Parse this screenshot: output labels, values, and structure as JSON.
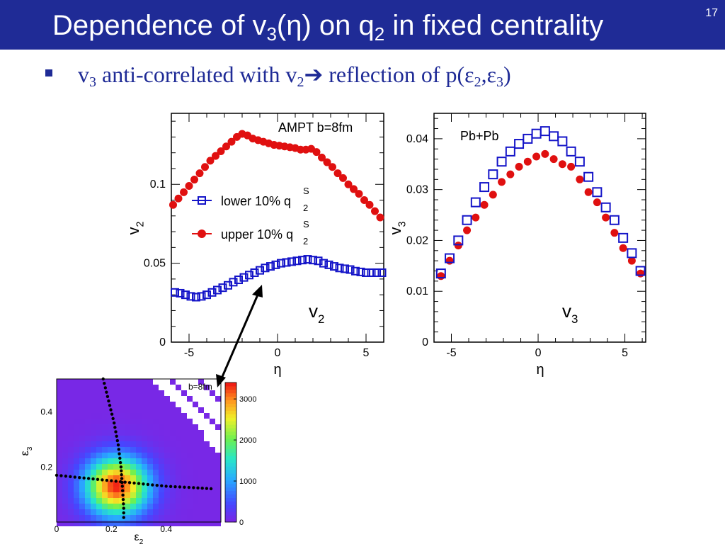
{
  "slide": {
    "title": {
      "pre": "Dependence of v",
      "sub1": "3",
      "mid": "(η) on q",
      "sub2": "2",
      "post": " in fixed centrality"
    },
    "slide_number": "17",
    "bullet": {
      "pre": "v",
      "sub1": "3",
      "mid": " anti-correlated with v",
      "sub2": "2",
      "arrow": "➔",
      "post1": " reflection of p(ε",
      "sub3": "2",
      "comma": ",ε",
      "sub4": "3",
      "post2": ")"
    }
  },
  "colors": {
    "title_bg": "#1f2b96",
    "blue": "#1414c8",
    "red": "#e01010",
    "arrow": "#000000"
  },
  "chart_data": [
    {
      "type": "scatter",
      "annotation": "AMPT b=8fm",
      "xlabel": "η",
      "ylabel": "v2",
      "panel_label": {
        "pre": "v",
        "sub": "2"
      },
      "xlim": [
        -6,
        6
      ],
      "ylim": [
        0,
        0.145
      ],
      "xticks": [
        "-5",
        "0",
        "5"
      ],
      "yticks": [
        "0",
        "0.05",
        "0.1"
      ],
      "legend": {
        "position": "center-left",
        "entries": [
          "lower 10% q",
          "upper 10% q"
        ],
        "sup": "S",
        "sub": "2"
      },
      "series": [
        {
          "name": "lower 10% q2S",
          "marker": "open-square",
          "color": "#1414c8",
          "x": [
            -5.8,
            -5.5,
            -5.2,
            -4.9,
            -4.6,
            -4.3,
            -4.0,
            -3.7,
            -3.4,
            -3.1,
            -2.8,
            -2.5,
            -2.2,
            -1.9,
            -1.6,
            -1.3,
            -1.0,
            -0.7,
            -0.4,
            -0.1,
            0.2,
            0.5,
            0.8,
            1.1,
            1.4,
            1.7,
            2.0,
            2.3,
            2.6,
            2.9,
            3.2,
            3.5,
            3.8,
            4.1,
            4.4,
            4.7,
            5.0,
            5.3,
            5.6,
            5.9
          ],
          "y": [
            0.0315,
            0.031,
            0.03,
            0.029,
            0.0285,
            0.029,
            0.03,
            0.0315,
            0.033,
            0.0345,
            0.036,
            0.038,
            0.0395,
            0.041,
            0.0425,
            0.044,
            0.0455,
            0.047,
            0.048,
            0.049,
            0.05,
            0.0505,
            0.051,
            0.0515,
            0.052,
            0.0525,
            0.052,
            0.0515,
            0.05,
            0.049,
            0.048,
            0.047,
            0.0465,
            0.046,
            0.045,
            0.0445,
            0.044,
            0.044,
            0.044,
            0.044
          ]
        },
        {
          "name": "upper 10% q2S",
          "marker": "filled-circle",
          "color": "#e01010",
          "x": [
            -5.9,
            -5.6,
            -5.3,
            -5.0,
            -4.7,
            -4.4,
            -4.1,
            -3.8,
            -3.5,
            -3.2,
            -2.9,
            -2.6,
            -2.3,
            -2.0,
            -1.7,
            -1.4,
            -1.1,
            -0.8,
            -0.5,
            -0.2,
            0.1,
            0.4,
            0.7,
            1.0,
            1.3,
            1.6,
            1.9,
            2.2,
            2.5,
            2.8,
            3.1,
            3.4,
            3.7,
            4.0,
            4.3,
            4.6,
            4.9,
            5.2,
            5.5,
            5.8
          ],
          "y": [
            0.087,
            0.091,
            0.095,
            0.099,
            0.103,
            0.107,
            0.111,
            0.115,
            0.118,
            0.121,
            0.124,
            0.127,
            0.13,
            0.132,
            0.131,
            0.129,
            0.128,
            0.127,
            0.126,
            0.125,
            0.1245,
            0.124,
            0.1235,
            0.123,
            0.122,
            0.122,
            0.1225,
            0.1205,
            0.117,
            0.114,
            0.111,
            0.107,
            0.104,
            0.1,
            0.097,
            0.094,
            0.09,
            0.087,
            0.083,
            0.079
          ]
        }
      ]
    },
    {
      "type": "scatter",
      "annotation": "Pb+Pb",
      "xlabel": "η",
      "ylabel": "v3",
      "panel_label": {
        "pre": "v",
        "sub": "3"
      },
      "xlim": [
        -6,
        6.2
      ],
      "ylim": [
        0,
        0.045
      ],
      "xticks": [
        "-5",
        "0",
        "5"
      ],
      "yticks": [
        "0",
        "0.01",
        "0.02",
        "0.03",
        "0.04"
      ],
      "series": [
        {
          "name": "lower 10% q2S",
          "marker": "open-square",
          "color": "#1414c8",
          "x": [
            -5.6,
            -5.1,
            -4.6,
            -4.1,
            -3.6,
            -3.1,
            -2.6,
            -2.1,
            -1.6,
            -1.1,
            -0.6,
            -0.1,
            0.4,
            0.9,
            1.4,
            1.9,
            2.4,
            2.9,
            3.4,
            3.9,
            4.4,
            4.9,
            5.4,
            5.9
          ],
          "y": [
            0.0135,
            0.0165,
            0.02,
            0.024,
            0.0275,
            0.0305,
            0.033,
            0.0355,
            0.0375,
            0.039,
            0.04,
            0.041,
            0.0415,
            0.0405,
            0.0395,
            0.0375,
            0.0355,
            0.0325,
            0.0295,
            0.0265,
            0.024,
            0.0205,
            0.0175,
            0.014
          ]
        },
        {
          "name": "upper 10% q2S",
          "marker": "filled-circle",
          "color": "#e01010",
          "x": [
            -5.6,
            -5.1,
            -4.6,
            -4.1,
            -3.6,
            -3.1,
            -2.6,
            -2.1,
            -1.6,
            -1.1,
            -0.6,
            -0.1,
            0.4,
            0.9,
            1.4,
            1.9,
            2.4,
            2.9,
            3.4,
            3.9,
            4.4,
            4.9,
            5.4,
            5.9
          ],
          "y": [
            0.013,
            0.016,
            0.019,
            0.022,
            0.0245,
            0.027,
            0.029,
            0.0315,
            0.033,
            0.0345,
            0.0355,
            0.0365,
            0.037,
            0.036,
            0.035,
            0.0345,
            0.032,
            0.0295,
            0.0275,
            0.0245,
            0.0215,
            0.0185,
            0.016,
            0.0135
          ]
        }
      ]
    },
    {
      "type": "heatmap",
      "annotation": "b=8fm",
      "xlabel": {
        "pre": "ε",
        "sub": "2"
      },
      "ylabel": {
        "pre": "ε",
        "sub": "3"
      },
      "xlim": [
        0,
        0.6
      ],
      "ylim": [
        0,
        0.52
      ],
      "xticks": [
        "0",
        "0.2",
        "0.4"
      ],
      "yticks": [
        "0.2",
        "0.4"
      ],
      "colorbar": {
        "range": [
          0,
          3400
        ],
        "ticks": [
          "0",
          "1000",
          "2000",
          "3000"
        ]
      },
      "peak": {
        "x": 0.22,
        "y": 0.13,
        "value": 3400
      },
      "profiles": [
        {
          "name": "vertical",
          "points": [
            [
              0.17,
              0.52
            ],
            [
              0.19,
              0.44
            ],
            [
              0.21,
              0.36
            ],
            [
              0.225,
              0.28
            ],
            [
              0.235,
              0.2
            ],
            [
              0.24,
              0.13
            ],
            [
              0.245,
              0.05
            ],
            [
              0.245,
              0.0
            ]
          ]
        },
        {
          "name": "horizontal",
          "points": [
            [
              0.0,
              0.17
            ],
            [
              0.1,
              0.16
            ],
            [
              0.2,
              0.15
            ],
            [
              0.3,
              0.14
            ],
            [
              0.4,
              0.13
            ],
            [
              0.5,
              0.125
            ],
            [
              0.58,
              0.12
            ]
          ]
        }
      ]
    }
  ]
}
